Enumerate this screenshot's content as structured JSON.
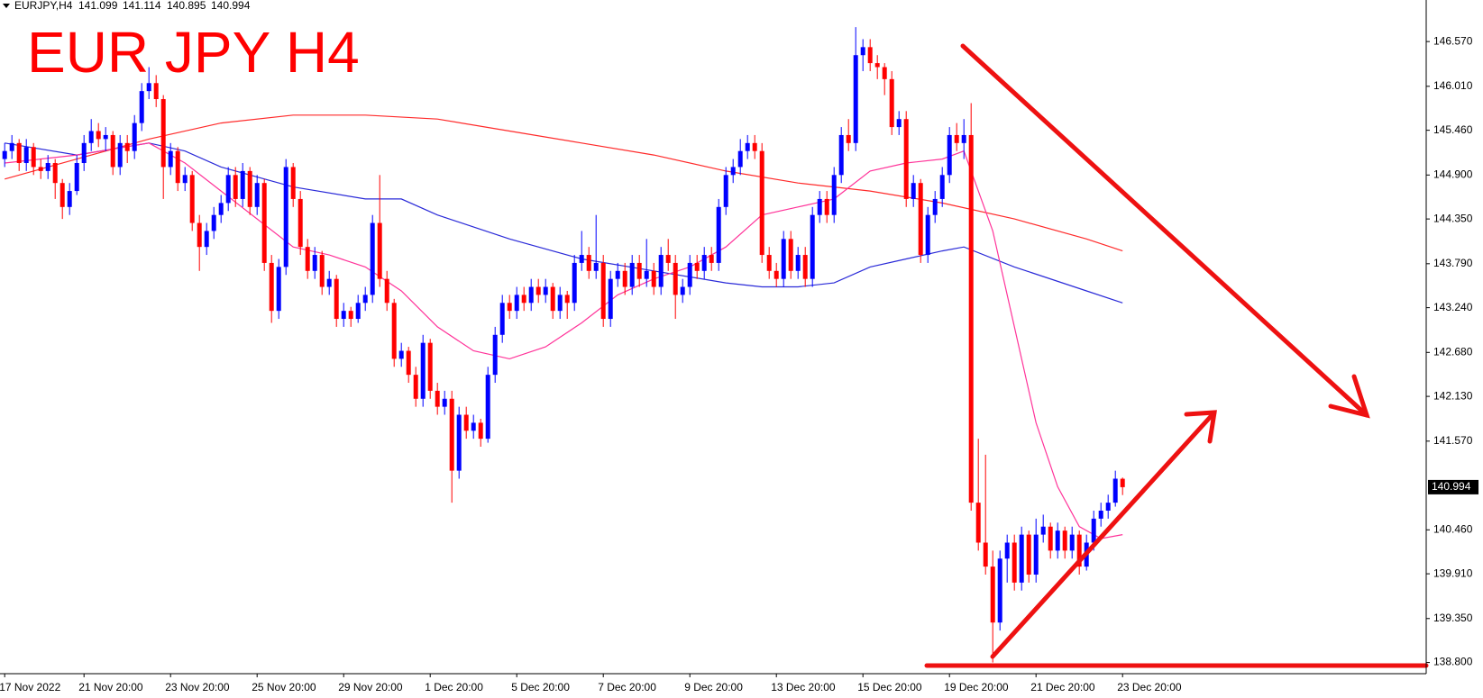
{
  "chart_data": {
    "type": "candlestick",
    "symbol": "EURJPY,H4",
    "title": "EUR JPY H4",
    "up_color": "#0000ff",
    "down_color": "#ff0000",
    "xlim": [
      -0.65,
      197.1
    ],
    "ylim": [
      138.66,
      147.09
    ],
    "yticks": [
      {
        "value": 146.57,
        "label": "146.570"
      },
      {
        "value": 146.01,
        "label": "146.010"
      },
      {
        "value": 145.46,
        "label": "145.460"
      },
      {
        "value": 144.9,
        "label": "144.900"
      },
      {
        "value": 144.35,
        "label": "144.350"
      },
      {
        "value": 143.79,
        "label": "143.790"
      },
      {
        "value": 143.24,
        "label": "143.240"
      },
      {
        "value": 142.68,
        "label": "142.680"
      },
      {
        "value": 142.13,
        "label": "142.130"
      },
      {
        "value": 141.57,
        "label": "141.570"
      },
      {
        "value": 140.46,
        "label": "140.460"
      },
      {
        "value": 139.91,
        "label": "139.910"
      },
      {
        "value": 139.35,
        "label": "139.350"
      },
      {
        "value": 138.8,
        "label": "138.800"
      }
    ],
    "xticks": [
      {
        "value": 0,
        "label": "17 Nov 2022"
      },
      {
        "value": 11,
        "label": "21 Nov 20:00"
      },
      {
        "value": 23,
        "label": "23 Nov 20:00"
      },
      {
        "value": 35,
        "label": "25 Nov 20:00"
      },
      {
        "value": 47,
        "label": "29 Nov 20:00"
      },
      {
        "value": 59,
        "label": "1 Dec 20:00"
      },
      {
        "value": 71,
        "label": "5 Dec 20:00"
      },
      {
        "value": 83,
        "label": "7 Dec 20:00"
      },
      {
        "value": 95,
        "label": "9 Dec 20:00"
      },
      {
        "value": 107,
        "label": "13 Dec 20:00"
      },
      {
        "value": 119,
        "label": "15 Dec 20:00"
      },
      {
        "value": 131,
        "label": "19 Dec 20:00"
      },
      {
        "value": 143,
        "label": "21 Dec 20:00"
      },
      {
        "value": 155,
        "label": "23 Dec 20:00"
      }
    ],
    "price_label": {
      "value": 140.994,
      "label": "140.994"
    },
    "open": [
      145.1,
      145.2,
      145.3,
      145.05,
      145.25,
      145.0,
      144.95,
      145.05,
      144.8,
      144.5,
      144.7,
      145.05,
      145.3,
      145.45,
      145.35,
      145.4,
      145.0,
      145.3,
      145.2,
      145.55,
      145.95,
      146.05,
      145.85,
      145.0,
      145.2,
      144.8,
      144.9,
      144.3,
      144.0,
      144.2,
      144.4,
      144.55,
      144.9,
      144.6,
      144.95,
      144.5,
      144.8,
      143.8,
      143.2,
      143.75,
      145.0,
      144.6,
      144.0,
      143.7,
      143.9,
      143.5,
      143.6,
      143.1,
      143.2,
      143.1,
      143.3,
      143.4,
      144.3,
      143.6,
      143.3,
      142.6,
      142.7,
      142.4,
      142.1,
      142.8,
      142.2,
      142.0,
      142.1,
      141.2,
      141.9,
      141.7,
      141.8,
      141.6,
      142.4,
      142.9,
      143.3,
      143.2,
      143.4,
      143.3,
      143.5,
      143.4,
      143.5,
      143.2,
      143.4,
      143.3,
      143.8,
      143.9,
      143.7,
      143.8,
      143.1,
      143.6,
      143.7,
      143.5,
      143.8,
      143.6,
      143.7,
      143.5,
      143.9,
      143.8,
      143.4,
      143.5,
      143.8,
      143.7,
      143.9,
      143.8,
      144.5,
      144.9,
      145.0,
      145.2,
      145.3,
      145.2,
      143.9,
      143.7,
      143.6,
      144.1,
      143.7,
      143.9,
      143.6,
      144.4,
      144.6,
      144.4,
      144.9,
      145.4,
      145.3,
      146.4,
      146.5,
      146.3,
      146.25,
      146.1,
      145.5,
      145.6,
      144.6,
      144.8,
      143.9,
      144.4,
      144.6,
      144.9,
      145.4,
      145.3,
      145.4,
      140.8,
      140.3,
      140.0,
      139.3,
      140.1,
      140.3,
      139.8,
      140.4,
      139.9,
      140.4,
      140.5,
      140.2,
      140.45,
      140.2,
      140.4,
      140.0,
      140.3,
      140.6,
      140.7,
      140.8,
      141.099
    ],
    "high": [
      145.3,
      145.4,
      145.35,
      145.35,
      145.3,
      145.1,
      145.15,
      145.1,
      144.85,
      144.8,
      145.15,
      145.4,
      145.6,
      145.55,
      145.5,
      145.45,
      145.4,
      145.4,
      145.65,
      146.05,
      146.25,
      146.15,
      145.9,
      145.3,
      145.25,
      145.0,
      144.95,
      144.4,
      144.3,
      144.5,
      144.65,
      145.0,
      145.0,
      145.05,
      145.0,
      144.9,
      144.85,
      143.9,
      143.85,
      145.1,
      145.05,
      144.7,
      144.1,
      144.0,
      143.95,
      143.7,
      143.65,
      143.3,
      143.25,
      143.4,
      143.5,
      144.4,
      144.9,
      143.7,
      143.35,
      142.8,
      142.75,
      142.5,
      142.9,
      142.85,
      142.3,
      142.2,
      142.2,
      142.0,
      142.0,
      141.9,
      141.85,
      142.5,
      143.0,
      143.4,
      143.4,
      143.5,
      143.5,
      143.6,
      143.6,
      143.6,
      143.55,
      143.5,
      143.45,
      143.9,
      144.2,
      144.0,
      144.4,
      143.9,
      143.7,
      143.8,
      143.8,
      143.9,
      143.9,
      144.1,
      143.8,
      144.0,
      144.1,
      143.9,
      143.6,
      143.9,
      143.9,
      144.0,
      144.0,
      144.6,
      145.0,
      145.1,
      145.35,
      145.4,
      145.4,
      145.3,
      144.0,
      143.8,
      144.2,
      144.2,
      144.0,
      144.0,
      144.5,
      144.7,
      144.7,
      145.0,
      145.5,
      145.6,
      146.75,
      146.6,
      146.6,
      146.4,
      146.3,
      146.2,
      145.7,
      145.7,
      144.9,
      144.85,
      144.5,
      144.7,
      145.0,
      145.5,
      145.55,
      145.6,
      145.8,
      141.6,
      141.4,
      140.2,
      140.2,
      140.4,
      140.4,
      140.5,
      140.45,
      140.6,
      140.65,
      140.55,
      140.55,
      140.5,
      140.5,
      140.45,
      140.4,
      140.7,
      140.8,
      140.9,
      141.2,
      141.114
    ],
    "low": [
      145.0,
      145.1,
      144.95,
      144.95,
      144.9,
      144.85,
      144.85,
      144.6,
      144.35,
      144.4,
      144.65,
      144.95,
      145.2,
      145.25,
      145.2,
      144.9,
      144.9,
      145.05,
      145.1,
      145.45,
      145.85,
      145.75,
      144.6,
      144.9,
      144.7,
      144.7,
      144.2,
      143.7,
      143.9,
      144.1,
      144.3,
      144.45,
      144.5,
      144.5,
      144.4,
      144.4,
      143.7,
      143.05,
      143.1,
      143.65,
      144.5,
      143.9,
      143.6,
      143.6,
      143.4,
      143.4,
      143.0,
      143.0,
      143.0,
      143.05,
      143.2,
      143.3,
      143.5,
      143.2,
      142.5,
      142.5,
      142.3,
      142.0,
      142.0,
      142.1,
      141.9,
      141.9,
      140.8,
      141.1,
      141.6,
      141.6,
      141.5,
      141.55,
      142.3,
      142.8,
      143.1,
      143.1,
      143.2,
      143.2,
      143.3,
      143.3,
      143.1,
      143.1,
      143.1,
      143.2,
      143.7,
      143.6,
      143.6,
      143.0,
      143.0,
      143.5,
      143.4,
      143.4,
      143.5,
      143.5,
      143.4,
      143.4,
      143.7,
      143.1,
      143.3,
      143.4,
      143.6,
      143.6,
      143.7,
      143.7,
      144.4,
      144.8,
      144.9,
      145.1,
      145.1,
      143.8,
      143.6,
      143.5,
      143.5,
      143.6,
      143.6,
      143.5,
      143.5,
      144.3,
      144.3,
      144.3,
      144.8,
      145.2,
      145.2,
      146.2,
      146.2,
      146.1,
      145.9,
      145.4,
      145.4,
      144.5,
      144.5,
      143.8,
      143.8,
      144.3,
      144.5,
      144.8,
      145.2,
      145.1,
      140.7,
      140.2,
      139.9,
      138.8,
      139.2,
      139.8,
      139.7,
      139.7,
      139.8,
      139.8,
      140.3,
      140.1,
      140.1,
      140.1,
      140.1,
      139.9,
      139.95,
      140.2,
      140.5,
      140.6,
      140.75,
      140.895
    ],
    "close": [
      145.2,
      145.3,
      145.05,
      145.25,
      145.0,
      144.95,
      145.05,
      144.8,
      144.5,
      144.7,
      145.05,
      145.3,
      145.45,
      145.35,
      145.4,
      145.0,
      145.3,
      145.2,
      145.55,
      145.95,
      146.05,
      145.85,
      145.0,
      145.2,
      144.8,
      144.9,
      144.3,
      144.0,
      144.2,
      144.4,
      144.55,
      144.9,
      144.6,
      144.95,
      144.5,
      144.8,
      143.8,
      143.2,
      143.75,
      145.0,
      144.6,
      144.0,
      143.7,
      143.9,
      143.5,
      143.6,
      143.1,
      143.2,
      143.1,
      143.3,
      143.4,
      144.3,
      143.6,
      143.3,
      142.6,
      142.7,
      142.4,
      142.1,
      142.8,
      142.2,
      142.0,
      142.1,
      141.2,
      141.9,
      141.7,
      141.8,
      141.6,
      142.4,
      142.9,
      143.3,
      143.2,
      143.4,
      143.3,
      143.5,
      143.4,
      143.5,
      143.2,
      143.4,
      143.3,
      143.8,
      143.9,
      143.7,
      143.8,
      143.1,
      143.6,
      143.7,
      143.5,
      143.8,
      143.6,
      143.7,
      143.5,
      143.9,
      143.8,
      143.4,
      143.5,
      143.8,
      143.7,
      143.9,
      143.8,
      144.5,
      144.9,
      145.0,
      145.2,
      145.3,
      145.2,
      143.9,
      143.7,
      143.6,
      144.1,
      143.7,
      143.9,
      143.6,
      144.4,
      144.6,
      144.4,
      144.9,
      145.4,
      145.3,
      146.4,
      146.5,
      146.3,
      146.25,
      146.1,
      145.5,
      145.6,
      144.6,
      144.8,
      143.9,
      144.4,
      144.6,
      144.9,
      145.4,
      145.3,
      145.4,
      140.8,
      140.3,
      140.0,
      139.3,
      140.1,
      140.3,
      139.8,
      140.4,
      139.9,
      140.4,
      140.5,
      140.2,
      140.45,
      140.2,
      140.4,
      140.0,
      140.3,
      140.6,
      140.7,
      140.8,
      141.1,
      140.994
    ],
    "series": [
      {
        "color": "#ff2a2a",
        "x": [
          0,
          10,
          20,
          30,
          40,
          50,
          60,
          70,
          80,
          90,
          100,
          110,
          120,
          130,
          140,
          150,
          155
        ],
        "values": [
          144.85,
          145.1,
          145.35,
          145.55,
          145.65,
          145.65,
          145.6,
          145.45,
          145.3,
          145.15,
          144.95,
          144.8,
          144.7,
          144.55,
          144.35,
          144.1,
          143.95
        ]
      },
      {
        "color": "#2a2ad8",
        "x": [
          0,
          10,
          20,
          25,
          30,
          40,
          50,
          55,
          60,
          70,
          80,
          90,
          100,
          105,
          110,
          115,
          120,
          125,
          130,
          133,
          140,
          150,
          155
        ],
        "values": [
          145.3,
          145.15,
          145.3,
          145.2,
          145.0,
          144.75,
          144.6,
          144.6,
          144.4,
          144.1,
          143.85,
          143.7,
          143.55,
          143.5,
          143.5,
          143.55,
          143.75,
          143.85,
          143.95,
          144.0,
          143.75,
          143.45,
          143.3
        ]
      },
      {
        "color": "#ff3399",
        "x": [
          0,
          10,
          20,
          25,
          30,
          35,
          40,
          45,
          50,
          55,
          60,
          65,
          70,
          75,
          80,
          85,
          90,
          95,
          100,
          105,
          110,
          115,
          120,
          125,
          130,
          133,
          137,
          140,
          143,
          146,
          149,
          152,
          155
        ],
        "values": [
          145.05,
          145.15,
          145.3,
          145.05,
          144.7,
          144.35,
          144.0,
          143.9,
          143.75,
          143.45,
          143.0,
          142.7,
          142.6,
          142.75,
          143.05,
          143.4,
          143.6,
          143.75,
          144.0,
          144.4,
          144.5,
          144.6,
          144.95,
          145.05,
          145.1,
          145.2,
          144.2,
          143.0,
          141.8,
          141.0,
          140.5,
          140.35,
          140.4
        ]
      }
    ]
  }
}
